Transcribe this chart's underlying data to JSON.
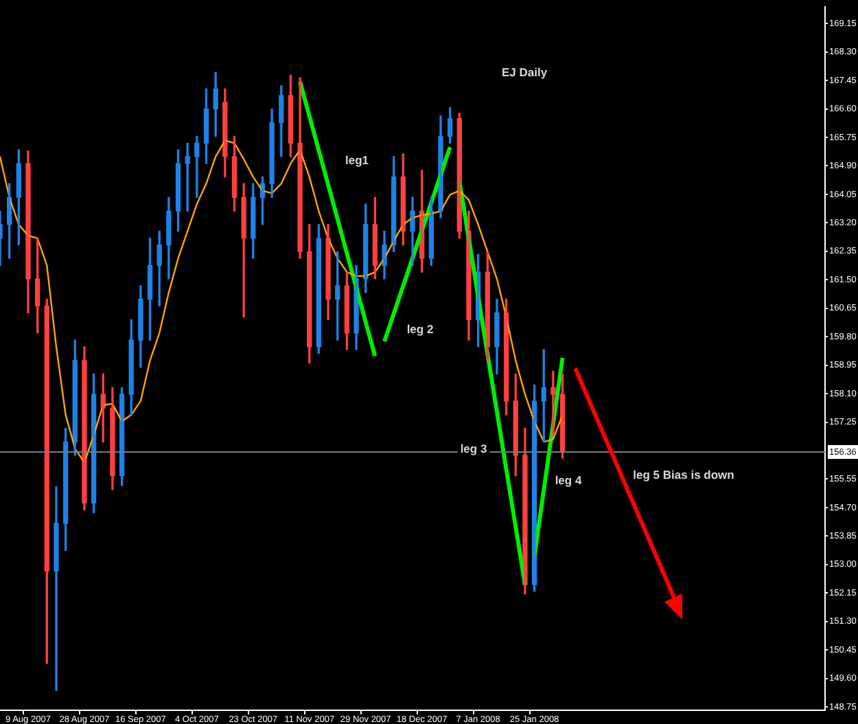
{
  "chart_data": {
    "type": "candlestick",
    "title": "EJ Daily",
    "categories": [
      null,
      null,
      null,
      "9 Aug 2007",
      null,
      null,
      null,
      null,
      null,
      "28 Aug 2007",
      null,
      null,
      null,
      null,
      null,
      "16 Sep 2007",
      null,
      null,
      null,
      null,
      null,
      "4 Oct 2007",
      null,
      null,
      null,
      null,
      null,
      "23 Oct 2007",
      null,
      null,
      null,
      null,
      null,
      "11 Nov 2007",
      null,
      null,
      null,
      null,
      null,
      "29 Nov 2007",
      null,
      null,
      null,
      null,
      null,
      "18 Dec 2007",
      null,
      null,
      null,
      null,
      null,
      "7 Jan 2008",
      null,
      null,
      null,
      null,
      null,
      "25 Jan 2008",
      null,
      null,
      null,
      null,
      null,
      null,
      null,
      null,
      null,
      null,
      null,
      null,
      null,
      null,
      null,
      null,
      null,
      null,
      null,
      null,
      null,
      null,
      null,
      null,
      null,
      null,
      null,
      null,
      null,
      null,
      null
    ],
    "ohlc": [
      [
        162.74,
        163.55,
        161.93,
        163.15
      ],
      [
        163.15,
        164.37,
        162.14,
        163.96
      ],
      [
        163.96,
        165.38,
        162.54,
        164.97
      ],
      [
        164.97,
        165.34,
        160.51,
        161.53
      ],
      [
        161.53,
        162.74,
        159.91,
        160.72
      ],
      [
        160.72,
        160.92,
        150.05,
        152.81
      ],
      [
        152.81,
        155.32,
        149.24,
        154.23
      ],
      [
        154.23,
        157.07,
        153.42,
        156.66
      ],
      [
        156.66,
        159.7,
        156.26,
        159.09
      ],
      [
        159.09,
        159.5,
        154.63,
        154.84
      ],
      [
        154.84,
        158.69,
        154.55,
        158.08
      ],
      [
        158.08,
        158.69,
        156.66,
        157.67
      ],
      [
        157.67,
        158.28,
        155.24,
        155.65
      ],
      [
        155.65,
        158.28,
        155.36,
        158.08
      ],
      [
        158.08,
        160.31,
        157.47,
        159.7
      ],
      [
        159.7,
        161.32,
        158.89,
        160.92
      ],
      [
        160.92,
        162.74,
        159.7,
        161.93
      ],
      [
        161.93,
        162.95,
        160.72,
        162.54
      ],
      [
        162.54,
        163.96,
        161.53,
        163.55
      ],
      [
        163.55,
        165.38,
        162.95,
        164.97
      ],
      [
        164.97,
        165.58,
        163.55,
        165.18
      ],
      [
        165.18,
        165.78,
        163.96,
        165.58
      ],
      [
        165.58,
        167.2,
        164.97,
        166.6
      ],
      [
        166.6,
        167.69,
        165.78,
        167.2
      ],
      [
        166.8,
        167.2,
        164.57,
        165.18
      ],
      [
        165.18,
        165.78,
        163.55,
        163.96
      ],
      [
        163.96,
        164.37,
        160.39,
        162.74
      ],
      [
        162.74,
        164.37,
        162.14,
        163.96
      ],
      [
        163.96,
        164.57,
        163.15,
        164.37
      ],
      [
        164.37,
        166.6,
        163.96,
        166.19
      ],
      [
        166.19,
        167.29,
        165.18,
        167.0
      ],
      [
        167.0,
        167.61,
        165.18,
        165.58
      ],
      [
        165.58,
        167.53,
        162.14,
        162.34
      ],
      [
        162.34,
        163.15,
        159.01,
        159.5
      ],
      [
        159.5,
        163.15,
        159.3,
        162.74
      ],
      [
        162.74,
        163.15,
        160.31,
        160.92
      ],
      [
        160.92,
        162.34,
        159.7,
        161.32
      ],
      [
        161.32,
        161.73,
        159.42,
        159.91
      ],
      [
        159.91,
        161.93,
        159.42,
        161.53
      ],
      [
        161.53,
        163.76,
        161.12,
        163.15
      ],
      [
        163.15,
        163.96,
        161.53,
        161.93
      ],
      [
        161.93,
        162.95,
        161.53,
        162.54
      ],
      [
        162.54,
        165.18,
        162.34,
        164.57
      ],
      [
        164.57,
        165.26,
        162.54,
        162.95
      ],
      [
        162.95,
        163.96,
        161.93,
        163.55
      ],
      [
        163.55,
        164.77,
        161.73,
        162.14
      ],
      [
        162.14,
        163.96,
        161.93,
        163.55
      ],
      [
        163.55,
        166.39,
        163.35,
        165.78
      ],
      [
        165.78,
        166.64,
        165.58,
        166.31
      ],
      [
        166.31,
        166.47,
        162.74,
        162.95
      ],
      [
        162.95,
        163.55,
        159.7,
        160.31
      ],
      [
        160.31,
        162.26,
        159.5,
        161.73
      ],
      [
        161.73,
        162.34,
        159.09,
        159.5
      ],
      [
        159.5,
        160.92,
        158.69,
        160.51
      ],
      [
        160.51,
        160.92,
        157.47,
        157.88
      ],
      [
        157.88,
        158.69,
        155.65,
        156.26
      ],
      [
        156.26,
        157.07,
        152.12,
        152.4
      ],
      [
        152.4,
        158.36,
        152.2,
        157.88
      ],
      [
        157.88,
        159.42,
        156.66,
        158.28
      ],
      [
        158.28,
        158.77,
        156.86,
        158.08
      ],
      [
        158.08,
        158.69,
        156.17,
        156.36
      ],
      null,
      null,
      null,
      null,
      null,
      null,
      null,
      null,
      null,
      null,
      null,
      null,
      null,
      null,
      null,
      null,
      null,
      null,
      null,
      null,
      null,
      null,
      null,
      null,
      null,
      null,
      null,
      null
    ],
    "colors": [
      "#1e82e6",
      "#1e82e6",
      "#1e82e6",
      "#ff4040",
      "#ff4040",
      "#ff4040",
      "#1e82e6",
      "#1e82e6",
      "#1e82e6",
      "#ff4040",
      "#1e82e6",
      "#ff4040",
      "#ff4040",
      "#1e82e6",
      "#1e82e6",
      "#1e82e6",
      "#1e82e6",
      "#1e82e6",
      "#1e82e6",
      "#1e82e6",
      "#1e82e6",
      "#1e82e6",
      "#1e82e6",
      "#1e82e6",
      "#ff4040",
      "#ff4040",
      "#ff4040",
      "#1e82e6",
      "#1e82e6",
      "#1e82e6",
      "#1e82e6",
      "#ff4040",
      "#ff4040",
      "#ff4040",
      "#1e82e6",
      "#ff4040",
      "#1e82e6",
      "#ff4040",
      "#1e82e6",
      "#1e82e6",
      "#ff4040",
      "#1e82e6",
      "#1e82e6",
      "#ff4040",
      "#1e82e6",
      "#ff4040",
      "#1e82e6",
      "#1e82e6",
      "#1e82e6",
      "#ff4040",
      "#ff4040",
      "#1e82e6",
      "#ff4040",
      "#1e82e6",
      "#ff4040",
      "#ff4040",
      "#ff4040",
      "#1e82e6",
      "#1e82e6",
      "#ff4040",
      "#ff4040",
      null,
      null,
      null,
      null,
      null,
      null,
      null,
      null,
      null,
      null,
      null,
      null,
      null,
      null,
      null,
      null,
      null,
      null,
      null,
      null,
      null,
      null,
      null,
      null,
      null,
      null,
      null,
      null
    ],
    "series": [
      {
        "type": "line",
        "color": "#ffa500",
        "values": [
          165.18,
          163.96,
          163.15,
          162.82,
          162.74,
          161.93,
          159.5,
          157.47,
          156.46,
          156.05,
          156.86,
          157.76,
          157.8,
          157.27,
          157.47,
          157.88,
          159.09,
          159.91,
          161.12,
          162.14,
          162.95,
          163.76,
          164.37,
          165.18,
          165.66,
          165.58,
          165.1,
          164.57,
          164.16,
          164.08,
          164.37,
          164.97,
          165.38,
          164.57,
          163.55,
          162.74,
          162.14,
          161.73,
          161.61,
          161.61,
          161.73,
          162.14,
          162.66,
          163.15,
          163.35,
          163.43,
          163.47,
          163.55,
          164.04,
          164.16,
          163.88,
          163.15,
          162.34,
          161.53,
          160.39,
          159.09,
          158.08,
          157.27,
          156.66,
          156.74,
          157.47,
          null,
          null,
          null,
          null,
          null,
          null,
          null,
          null,
          null,
          null,
          null,
          null,
          null,
          null,
          null,
          null,
          null,
          null,
          null,
          null,
          null,
          null,
          null,
          null,
          null,
          null,
          null,
          null
        ]
      },
      {
        "type": "line",
        "color": "#00ee00",
        "values": [
          null,
          null,
          null,
          null,
          null,
          null,
          null,
          null,
          null,
          null,
          null,
          null,
          null,
          null,
          null,
          null,
          null,
          null,
          null,
          null,
          null,
          null,
          null,
          null,
          null,
          null,
          null,
          null,
          null,
          null,
          null,
          null,
          167.41,
          null,
          null,
          null,
          null,
          null,
          null,
          null,
          159.22,
          null,
          null,
          null,
          null,
          null,
          null,
          null,
          null,
          null,
          null,
          null,
          null,
          null,
          null,
          null,
          null,
          null,
          null,
          null,
          null,
          null,
          null,
          null,
          null,
          null,
          null,
          null,
          null,
          null,
          null,
          null,
          null,
          null,
          null,
          null,
          null,
          null,
          null,
          null,
          null,
          null,
          null,
          null,
          null,
          null,
          null,
          null,
          null
        ]
      },
      {
        "type": "line",
        "color": "#00ee00",
        "values": [
          null,
          null,
          null,
          null,
          null,
          null,
          null,
          null,
          null,
          null,
          null,
          null,
          null,
          null,
          null,
          null,
          null,
          null,
          null,
          null,
          null,
          null,
          null,
          null,
          null,
          null,
          null,
          null,
          null,
          null,
          null,
          null,
          null,
          null,
          null,
          null,
          null,
          null,
          null,
          null,
          null,
          159.66,
          null,
          null,
          null,
          null,
          null,
          null,
          165.46,
          null,
          null,
          null,
          null,
          null,
          null,
          null,
          null,
          null,
          null,
          null,
          null,
          null,
          null,
          null,
          null,
          null,
          null,
          null,
          null,
          null,
          null,
          null,
          null,
          null,
          null,
          null,
          null,
          null,
          null,
          null,
          null,
          null,
          null,
          null,
          null,
          null,
          null,
          null,
          null
        ]
      },
      {
        "type": "line",
        "color": "#00ee00",
        "values": [
          null,
          null,
          null,
          null,
          null,
          null,
          null,
          null,
          null,
          null,
          null,
          null,
          null,
          null,
          null,
          null,
          null,
          null,
          null,
          null,
          null,
          null,
          null,
          null,
          null,
          null,
          null,
          null,
          null,
          null,
          null,
          null,
          null,
          null,
          null,
          null,
          null,
          null,
          null,
          null,
          null,
          null,
          null,
          null,
          null,
          null,
          null,
          null,
          null,
          164.45,
          null,
          null,
          null,
          null,
          null,
          null,
          152.4,
          null,
          null,
          null,
          null,
          null,
          null,
          null,
          null,
          null,
          null,
          null,
          null,
          null,
          null,
          null,
          null,
          null,
          null,
          null,
          null,
          null,
          null,
          null,
          null,
          null,
          null,
          null,
          null,
          null,
          null,
          null,
          null
        ]
      },
      {
        "type": "line",
        "color": "#00ee00",
        "values": [
          null,
          null,
          null,
          null,
          null,
          null,
          null,
          null,
          null,
          null,
          null,
          null,
          null,
          null,
          null,
          null,
          null,
          null,
          null,
          null,
          null,
          null,
          null,
          null,
          null,
          null,
          null,
          null,
          null,
          null,
          null,
          null,
          null,
          null,
          null,
          null,
          null,
          null,
          null,
          null,
          null,
          null,
          null,
          null,
          null,
          null,
          null,
          null,
          null,
          null,
          null,
          null,
          null,
          null,
          null,
          null,
          null,
          153.25,
          null,
          null,
          159.17,
          null,
          null,
          null,
          null,
          null,
          null,
          null,
          null,
          null,
          null,
          null,
          null,
          null,
          null,
          null,
          null,
          null,
          null,
          null,
          null,
          null,
          null,
          null,
          null,
          null,
          null,
          null,
          null
        ]
      }
    ],
    "ylim": [
      148.65,
      169.65
    ],
    "yticks": [
      169.15,
      {
        "value": 168.3,
        "label": "168.30"
      },
      167.45,
      {
        "value": 166.6,
        "label": "166.60"
      },
      165.75,
      {
        "value": 164.9,
        "label": "164.90"
      },
      164.05,
      {
        "value": 163.2,
        "label": "163.20"
      },
      162.35,
      {
        "value": 161.5,
        "label": "161.50"
      },
      160.65,
      {
        "value": 159.8,
        "label": "159.80"
      },
      158.95,
      {
        "value": 158.1,
        "label": "158.10"
      },
      157.25,
      155.55,
      {
        "value": 154.7,
        "label": "154.70"
      },
      153.85,
      {
        "value": 153,
        "label": "153.00"
      },
      152.15,
      {
        "value": 151.3,
        "label": "151.30"
      },
      150.45,
      {
        "value": 149.6,
        "label": "149.60"
      },
      148.75
    ],
    "ref_lines": [
      {
        "axis": "y",
        "value": 156.36,
        "label": "156.36",
        "color": "#6f7f8f"
      }
    ],
    "annotations": [
      "leg1",
      "leg 2",
      "leg 3",
      "leg 4",
      "leg 5 Bias is down"
    ],
    "marker": "none"
  }
}
